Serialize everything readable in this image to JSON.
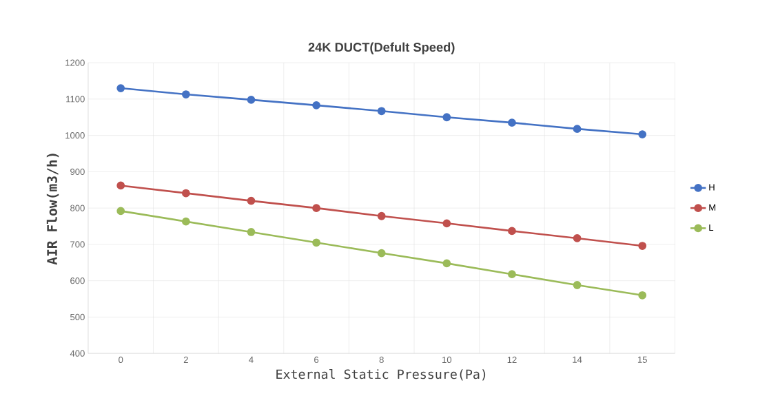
{
  "chart_data": {
    "type": "line",
    "title": "24K DUCT(Defult Speed)",
    "xlabel": "External Static Pressure(Pa)",
    "ylabel": "AIR Flow(m3/h)",
    "categories": [
      "0",
      "2",
      "4",
      "6",
      "8",
      "10",
      "12",
      "14",
      "15"
    ],
    "series": [
      {
        "name": "H",
        "color": "#4472c4",
        "values": [
          1130,
          1113,
          1098,
          1083,
          1067,
          1050,
          1035,
          1018,
          1003
        ]
      },
      {
        "name": "M",
        "color": "#c0504d",
        "values": [
          862,
          841,
          820,
          800,
          778,
          758,
          737,
          717,
          696
        ]
      },
      {
        "name": "L",
        "color": "#9bbb59",
        "values": [
          792,
          763,
          734,
          705,
          676,
          648,
          618,
          588,
          560
        ]
      }
    ],
    "ylim": [
      400,
      1200
    ],
    "yticks": [
      400,
      500,
      600,
      700,
      800,
      900,
      1000,
      1100,
      1200
    ],
    "grid": true,
    "legend": "right",
    "marker": "circle",
    "line_style": "solid"
  }
}
